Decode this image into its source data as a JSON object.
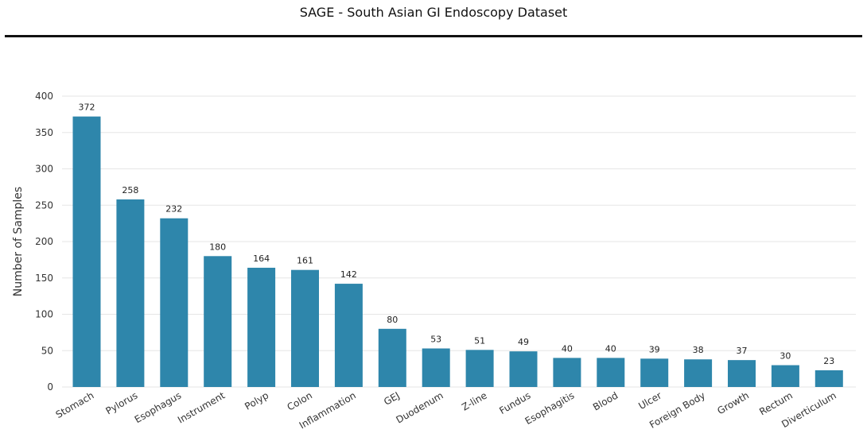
{
  "page": {
    "title": "SAGE - South Asian GI Endoscopy Dataset"
  },
  "chart_data": {
    "type": "bar",
    "title": "SAGE - South Asian GI Endoscopy Dataset",
    "xlabel": "",
    "ylabel": "Number of Samples",
    "categories": [
      "Stomach",
      "Pylorus",
      "Esophagus",
      "Instrument",
      "Polyp",
      "Colon",
      "Inflammation",
      "GEJ",
      "Duodenum",
      "Z-line",
      "Fundus",
      "Esophagitis",
      "Blood",
      "Ulcer",
      "Foreign Body",
      "Growth",
      "Rectum",
      "Diverticulum"
    ],
    "values": [
      372,
      258,
      232,
      180,
      164,
      161,
      142,
      80,
      53,
      51,
      49,
      40,
      40,
      39,
      38,
      37,
      30,
      23
    ],
    "ylim": [
      0,
      400
    ],
    "yticks": [
      0,
      50,
      100,
      150,
      200,
      250,
      300,
      350,
      400
    ],
    "grid": true,
    "bar_color": "#2e86ab",
    "grid_color": "#e6e6e6",
    "data_labels": true
  }
}
